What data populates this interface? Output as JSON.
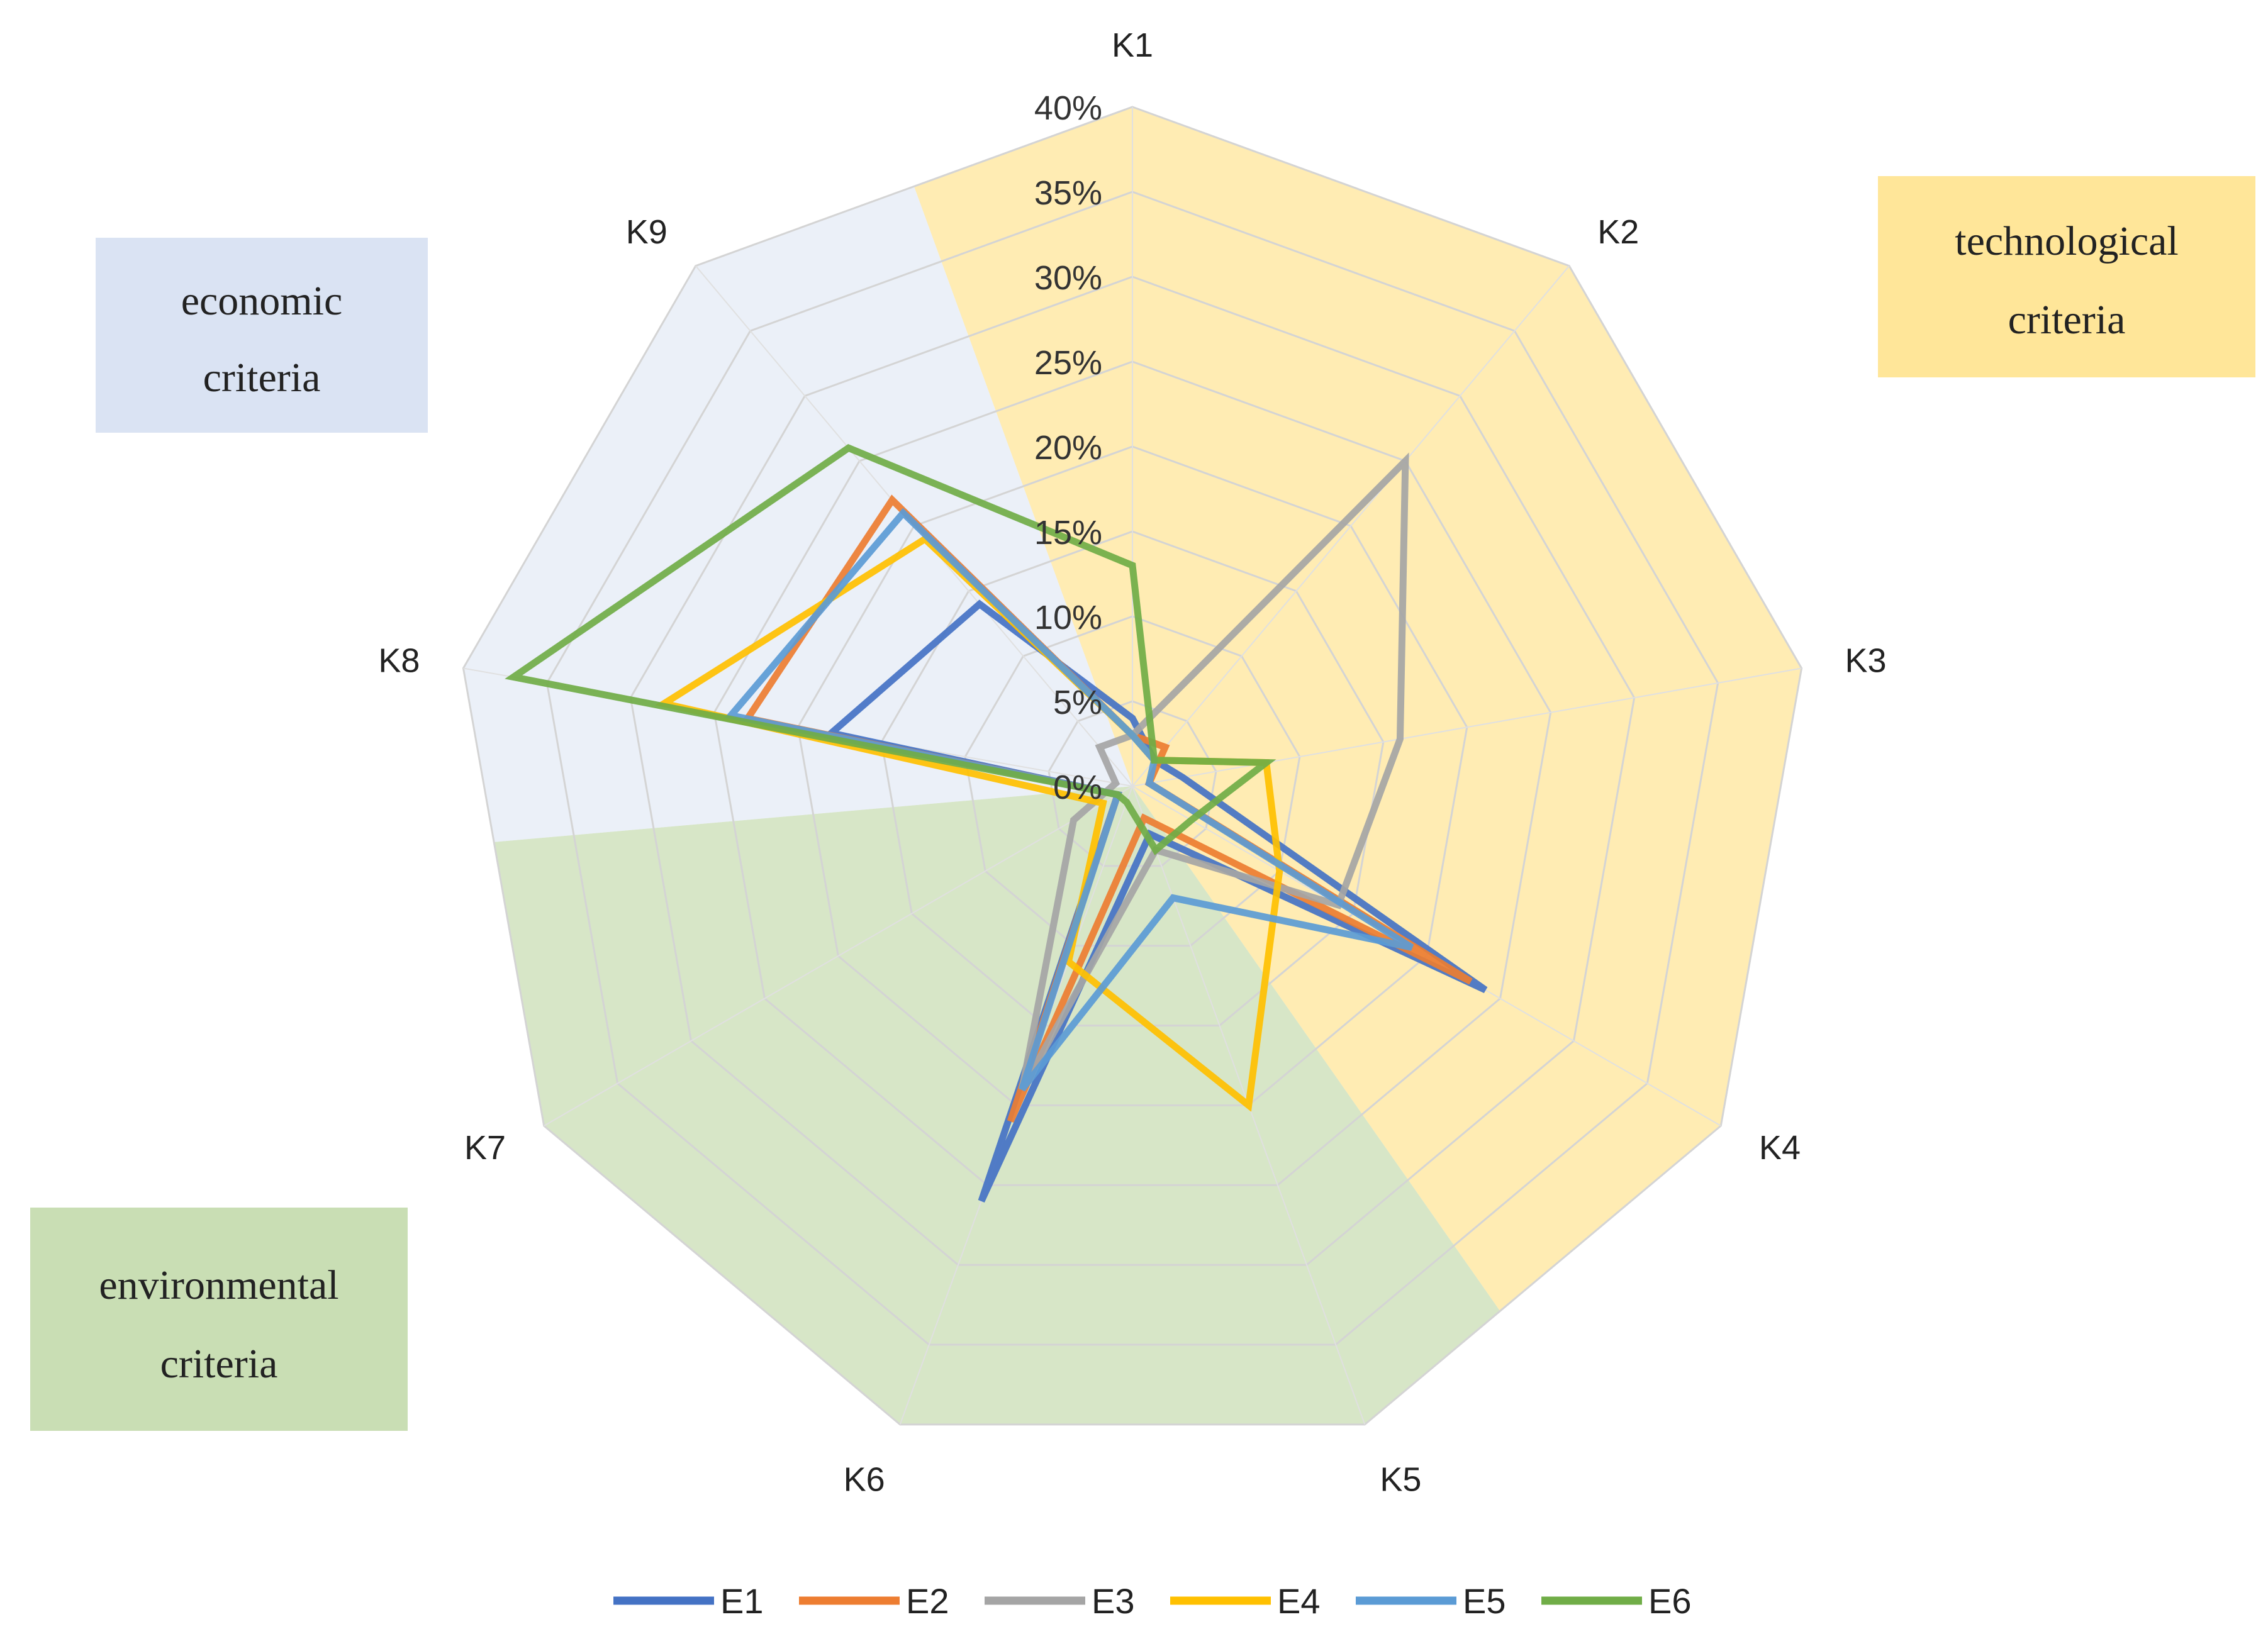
{
  "chart_data": {
    "type": "radar",
    "axes": [
      "K1",
      "K2",
      "K3",
      "K4",
      "K5",
      "K6",
      "K7",
      "K8",
      "K9"
    ],
    "rlim": [
      0,
      40
    ],
    "ticks": [
      "0%",
      "5%",
      "10%",
      "15%",
      "20%",
      "25%",
      "30%",
      "35%",
      "40%"
    ],
    "series": [
      {
        "name": "E1",
        "color": "#4472C4",
        "values": [
          4,
          2,
          3,
          24,
          3,
          26,
          1,
          18,
          14
        ]
      },
      {
        "name": "E2",
        "color": "#ED7D31",
        "values": [
          3,
          3,
          1,
          23,
          2,
          21,
          1,
          23,
          22
        ]
      },
      {
        "name": "E3",
        "color": "#A5A5A5",
        "values": [
          3,
          25,
          16,
          14,
          4,
          19,
          4,
          1,
          3
        ]
      },
      {
        "name": "E4",
        "color": "#FFC000",
        "values": [
          3,
          2,
          8,
          10,
          20,
          11,
          2,
          28,
          19
        ]
      },
      {
        "name": "E5",
        "color": "#5B9BD5",
        "values": [
          3,
          2,
          1,
          19,
          7,
          19,
          1,
          24,
          21
        ]
      },
      {
        "name": "E6",
        "color": "#70AD47",
        "values": [
          13,
          2,
          8,
          4,
          4,
          1,
          1,
          37,
          26
        ]
      }
    ],
    "regions": [
      {
        "label_lines": [
          "technological",
          "criteria"
        ],
        "color": "#FFE699"
      },
      {
        "label_lines": [
          "economic",
          "criteria"
        ],
        "color": "#DAE3F3"
      },
      {
        "label_lines": [
          "environmental",
          "criteria"
        ],
        "color": "#C9DEB4"
      }
    ],
    "legend_position": "bottom"
  }
}
